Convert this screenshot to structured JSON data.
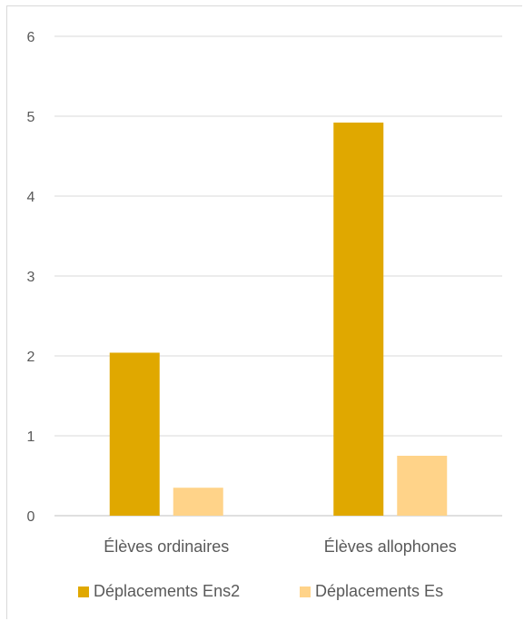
{
  "chart_data": {
    "type": "bar",
    "title": "",
    "xlabel": "",
    "ylabel": "",
    "categories": [
      "Élèves ordinaires",
      "Élèves allophones"
    ],
    "series": [
      {
        "name": "Déplacements Ens2",
        "values": [
          2.04,
          4.92
        ],
        "color": "#e0a800"
      },
      {
        "name": "Déplacements Es",
        "values": [
          0.35,
          0.75
        ],
        "color": "#ffd389"
      }
    ],
    "ylim": [
      0,
      6
    ],
    "yticks": [
      0,
      1,
      2,
      3,
      4,
      5,
      6
    ],
    "grid": true,
    "legend_position": "bottom"
  }
}
